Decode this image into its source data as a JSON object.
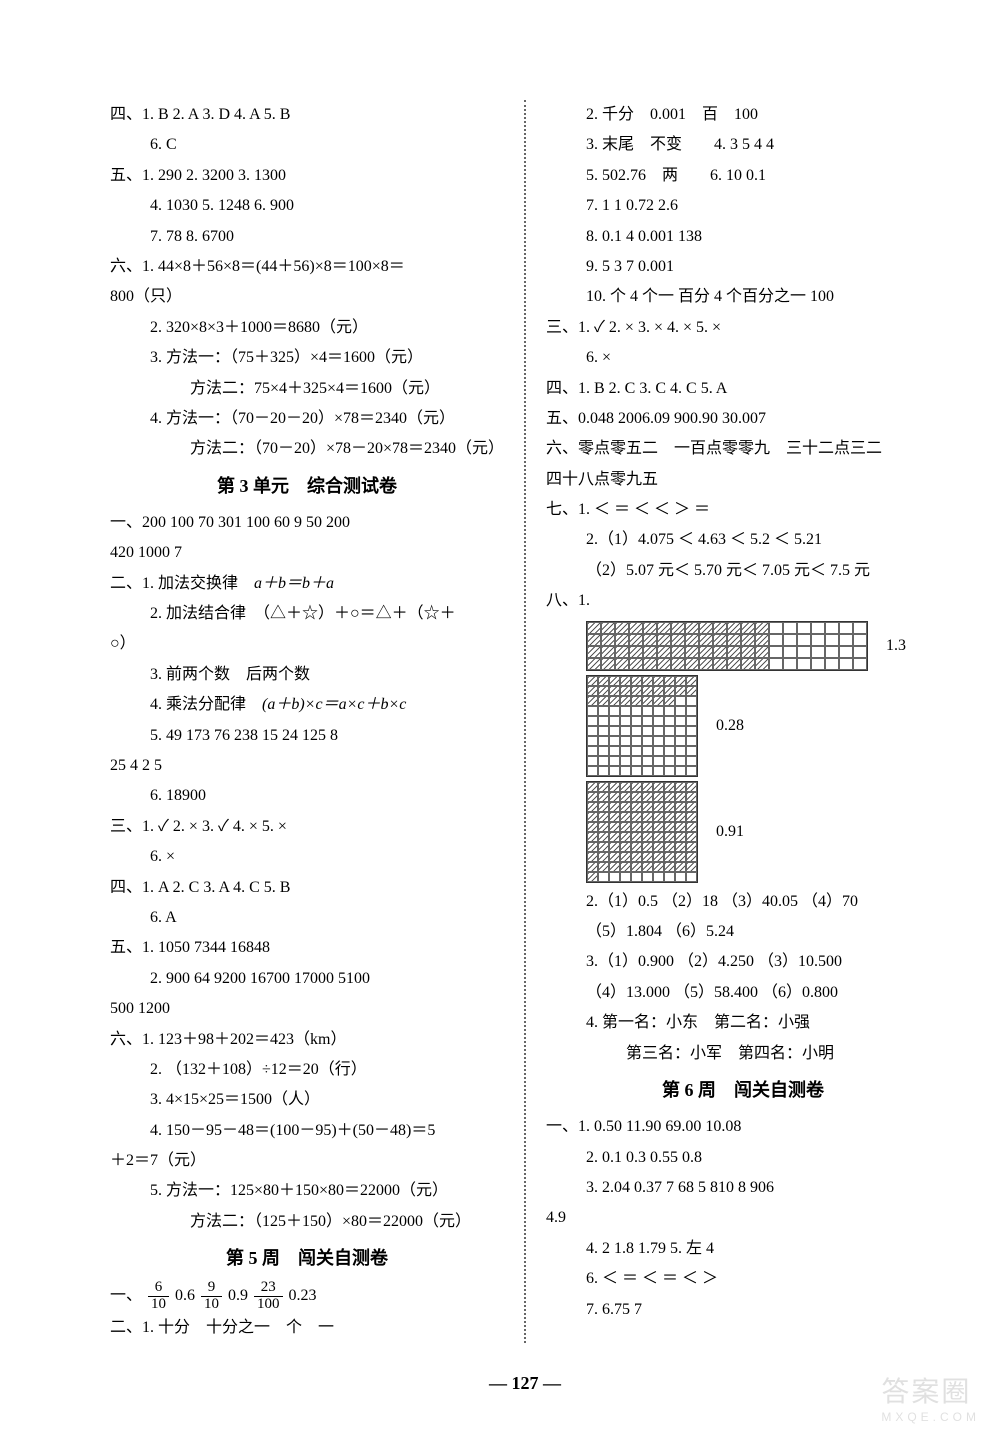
{
  "pageNumber": "— 127 —",
  "watermark": {
    "top": "答案圈",
    "bottom": "MXQE.COM"
  },
  "left": {
    "l1": "四、1. B    2. A    3. D    4. A    5. B",
    "l2": "6. C",
    "l3": "五、1. 290    2. 3200    3. 1300",
    "l4": "4. 1030    5. 1248    6. 900",
    "l5": "7. 78    8. 6700",
    "l6": "六、1. 44×8＋56×8＝(44＋56)×8＝100×8＝",
    "l7": "800（只）",
    "l8": "2. 320×8×3＋1000＝8680（元）",
    "l9": "3. 方法一：（75＋325）×4＝1600（元）",
    "l10": "方法二：75×4＋325×4＝1600（元）",
    "l11": "4. 方法一：（70－20－20）×78＝2340（元）",
    "l12": "方法二：（70－20）×78－20×78＝2340（元）",
    "h1": "第 3 单元　综合测试卷",
    "l13": "一、200  100  70  301  100  60  9  50  200",
    "l14": "420  1000  7",
    "l15a": "二、1. 加法交换律　",
    "l15b": "a＋b＝b＋a",
    "l16a": "2. 加法结合律　（△＋☆）＋○＝△＋（☆＋",
    "l17": "○）",
    "l18": "3. 前两个数　后两个数",
    "l19a": "4. 乘法分配律　",
    "l19b": "(a＋b)×c＝a×c＋b×c",
    "l20": "5. 49  173  76  238  15  24  125  8",
    "l21": "25  4  2  5",
    "l22": "6. 18900",
    "l23": "三、1. ✓    2. ×    3. ✓    4. ×    5. ×",
    "l24": "6. ×",
    "l25": "四、1. A    2. C    3. A    4. C    5. B",
    "l26": "6. A",
    "l27": "五、1. 1050  7344  16848",
    "l28": "2. 900  64  9200  16700  17000  5100",
    "l29": "500  1200",
    "l30": "六、1. 123＋98＋202＝423（km）",
    "l31": "2. （132＋108）÷12＝20（行）",
    "l32": "3. 4×15×25＝1500（人）",
    "l33": "4. 150－95－48＝(100－95)＋(50－48)＝5",
    "l34": "＋2＝7（元）",
    "l35": "5. 方法一：125×80＋150×80＝22000（元）",
    "l36": "方法二：（125＋150）×80＝22000（元）",
    "h2": "第 5 周　闯关自测卷",
    "l37a": "一、",
    "f1n": "6",
    "f1d": "10",
    "l37b": "  0.6  ",
    "f2n": "9",
    "f2d": "10",
    "l37c": "  0.9  ",
    "f3n": "23",
    "f3d": "100",
    "l37d": "  0.23",
    "l38": "二、1. 十分　十分之一　个　一"
  },
  "right": {
    "r1": "2. 千分　0.001　百　100",
    "r2": "3. 末尾　不变　　4. 3  5  4  4",
    "r3": "5. 502.76　两　　6. 10  0.1",
    "r4": "7. 1  1  0.72  2.6",
    "r5": "8. 0.1  4  0.001  138",
    "r6": "9. 5  3  7  0.001",
    "r7": "10. 个  4 个一  百分  4 个百分之一  100",
    "r8": "三、1. ✓    2. ×    3. ×    4. ×    5. ×",
    "r9": "6. ×",
    "r10": "四、1. B    2. C    3. C    4. C    5. A",
    "r11": "五、0.048  2006.09  900.90  30.007",
    "r12": "六、零点零五二　一百点零零九　三十二点三二",
    "r13": "四十八点零九五",
    "r14": "七、1. ＜  ＝  ＜  ＜  ＞  ＝",
    "r15": "2.（1）4.075 ＜ 4.63 ＜ 5.2 ＜ 5.21",
    "r16": "（2）5.07 元＜ 5.70 元＜ 7.05 元＜ 7.5 元",
    "r17": "八、1.",
    "g1label": "1.3",
    "g2label": "0.28",
    "g3label": "0.91",
    "r18": "2.（1）0.5 （2）18 （3）40.05 （4）70",
    "r19": "（5）1.804 （6）5.24",
    "r20": "3.（1）0.900 （2）4.250 （3）10.500",
    "r21": "（4）13.000 （5）58.400 （6）0.800",
    "r22": "4. 第一名：小东　第二名：小强",
    "r23": "第三名：小军　第四名：小明",
    "h3": "第 6 周　闯关自测卷",
    "r24": "一、1. 0.50  11.90  69.00  10.08",
    "r25": "2. 0.1  0.3  0.55  0.8",
    "r26": "3. 2.04  0.37  7  68  5  810  8  906",
    "r27": "4.9",
    "r28": "4. 2  1.8  1.79    5. 左  4",
    "r29": "6. ＜  ＝  ＜  ＝  ＜  ＞",
    "r30": "7. 6.75  7"
  },
  "grids": {
    "g1": {
      "rows": 4,
      "cols": 20,
      "fillCols": 13
    },
    "g2": {
      "rows": 10,
      "cols": 10,
      "fillRows": 2,
      "fillExtraCols": 8
    },
    "g3": {
      "rows": 10,
      "cols": 10,
      "fillRows": 9,
      "fillExtraCols": 1
    }
  }
}
